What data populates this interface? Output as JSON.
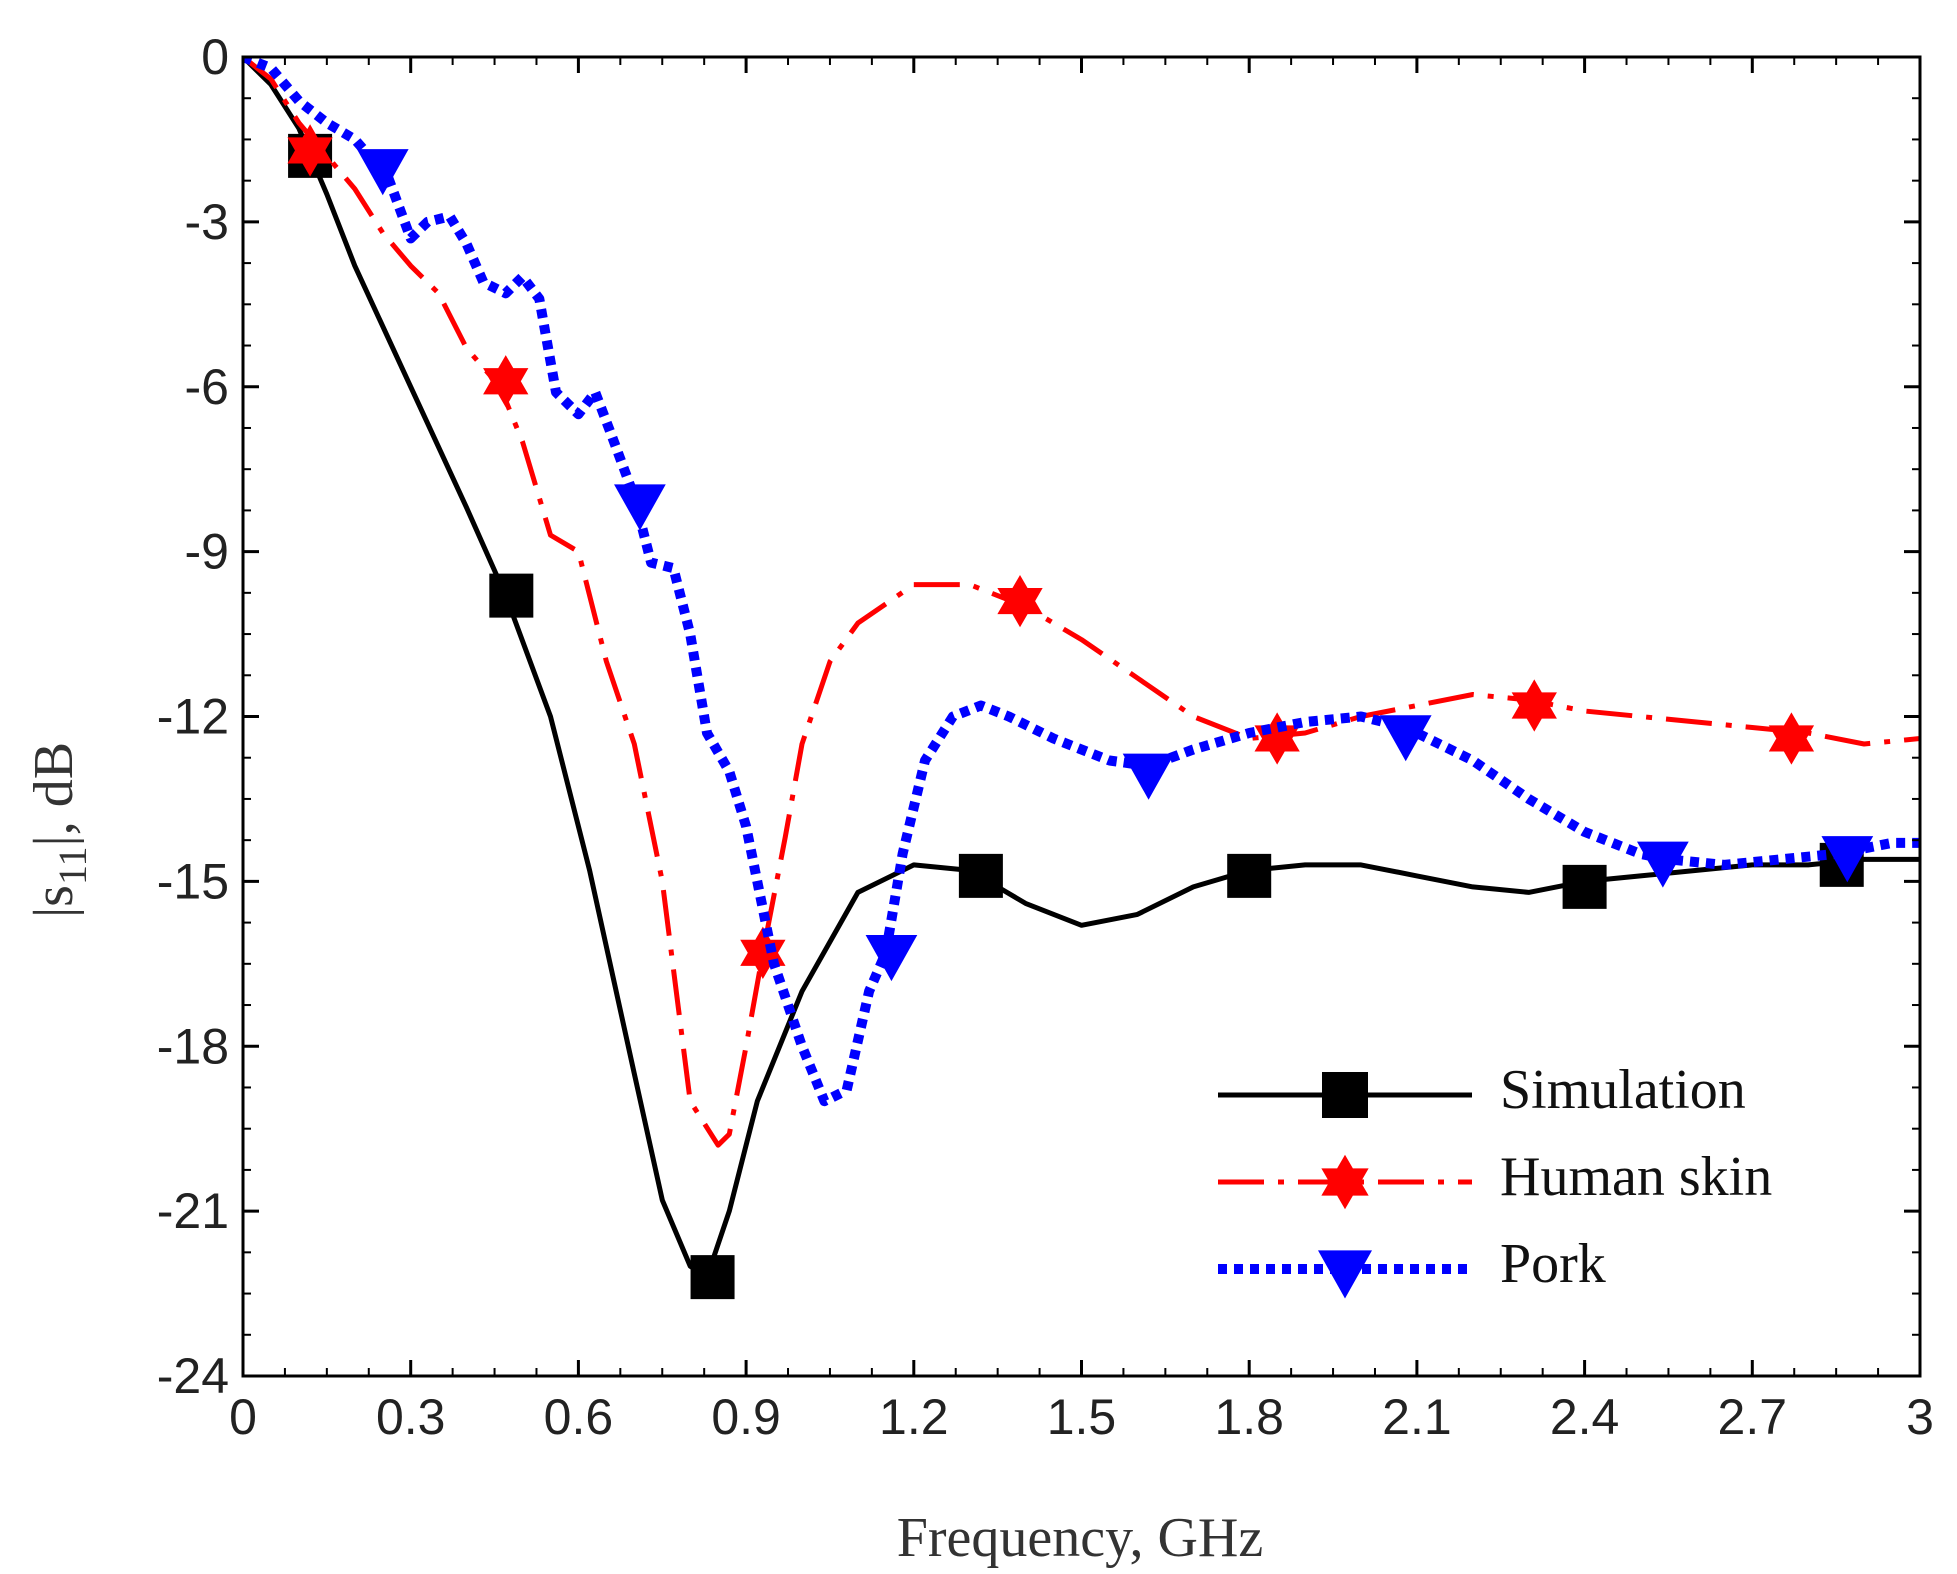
{
  "chart_data": {
    "type": "line",
    "title": "",
    "xlabel": "Frequency, GHz",
    "ylabel_main": "|s",
    "ylabel_sub": "11",
    "ylabel_tail": "|, dB",
    "xlim": [
      0,
      3
    ],
    "ylim": [
      -24,
      0
    ],
    "xticks": [
      0,
      0.3,
      0.6,
      0.9,
      1.2,
      1.5,
      1.8,
      2.1,
      2.4,
      2.7,
      3
    ],
    "xtick_labels": [
      "0",
      "0.3",
      "0.6",
      "0.9",
      "1.2",
      "1.5",
      "1.8",
      "2.1",
      "2.4",
      "2.7",
      "3"
    ],
    "yticks": [
      0,
      -3,
      -6,
      -9,
      -12,
      -15,
      -18,
      -21,
      -24
    ],
    "ytick_labels": [
      "0",
      "-3",
      "-6",
      "-9",
      "-12",
      "-15",
      "-18",
      "-21",
      "-24"
    ],
    "grid": false,
    "legend_position": "bottom-right",
    "series": [
      {
        "name": "Simulation",
        "color": "#000000",
        "line_style": "solid",
        "marker": "square",
        "x": [
          0,
          0.05,
          0.1,
          0.15,
          0.2,
          0.3,
          0.4,
          0.47,
          0.55,
          0.62,
          0.7,
          0.75,
          0.8,
          0.83,
          0.87,
          0.92,
          1.0,
          1.1,
          1.2,
          1.3,
          1.4,
          1.5,
          1.6,
          1.7,
          1.8,
          1.9,
          2.0,
          2.1,
          2.2,
          2.3,
          2.4,
          2.5,
          2.6,
          2.7,
          2.8,
          2.9,
          3.0
        ],
        "y": [
          0,
          -0.5,
          -1.3,
          -2.5,
          -3.8,
          -6.0,
          -8.2,
          -9.8,
          -12.0,
          -14.8,
          -18.5,
          -20.8,
          -22.0,
          -22.2,
          -21.0,
          -19.0,
          -17.0,
          -15.2,
          -14.7,
          -14.8,
          -15.4,
          -15.8,
          -15.6,
          -15.1,
          -14.8,
          -14.7,
          -14.7,
          -14.9,
          -15.1,
          -15.2,
          -15.0,
          -14.9,
          -14.8,
          -14.7,
          -14.7,
          -14.6,
          -14.6
        ],
        "marker_x": [
          0.12,
          0.48,
          0.84,
          1.32,
          1.8,
          2.4,
          2.86
        ],
        "marker_y": [
          -1.8,
          -9.8,
          -22.2,
          -14.9,
          -14.9,
          -15.1,
          -14.7
        ]
      },
      {
        "name": "Human skin",
        "color": "#ff0000",
        "line_style": "dashdot",
        "marker": "hexagram",
        "x": [
          0,
          0.05,
          0.1,
          0.2,
          0.25,
          0.3,
          0.35,
          0.4,
          0.46,
          0.5,
          0.55,
          0.6,
          0.65,
          0.7,
          0.75,
          0.8,
          0.85,
          0.87,
          0.9,
          0.93,
          0.97,
          1.0,
          1.05,
          1.1,
          1.2,
          1.3,
          1.4,
          1.5,
          1.6,
          1.7,
          1.8,
          1.9,
          2.0,
          2.1,
          2.2,
          2.3,
          2.4,
          2.5,
          2.6,
          2.7,
          2.8,
          2.9,
          3.0
        ],
        "y": [
          0,
          -0.4,
          -1.2,
          -2.4,
          -3.2,
          -3.8,
          -4.3,
          -5.3,
          -6.0,
          -7.0,
          -8.7,
          -9.0,
          -11.0,
          -12.5,
          -15.0,
          -19.0,
          -19.8,
          -19.6,
          -18.0,
          -16.3,
          -14.2,
          -12.5,
          -11.0,
          -10.3,
          -9.6,
          -9.6,
          -10.0,
          -10.6,
          -11.3,
          -12.0,
          -12.4,
          -12.3,
          -12.0,
          -11.8,
          -11.6,
          -11.7,
          -11.9,
          -12.0,
          -12.1,
          -12.2,
          -12.3,
          -12.5,
          -12.4
        ],
        "marker_x": [
          0.12,
          0.47,
          0.93,
          1.39,
          1.85,
          2.31,
          2.77
        ],
        "marker_y": [
          -1.7,
          -5.9,
          -16.3,
          -9.9,
          -12.4,
          -11.8,
          -12.4
        ]
      },
      {
        "name": "Pork",
        "color": "#0000ff",
        "line_style": "dotted",
        "marker": "triangle-down",
        "x": [
          0,
          0.05,
          0.1,
          0.15,
          0.2,
          0.26,
          0.3,
          0.33,
          0.37,
          0.4,
          0.43,
          0.47,
          0.5,
          0.53,
          0.56,
          0.6,
          0.63,
          0.66,
          0.7,
          0.73,
          0.77,
          0.8,
          0.83,
          0.87,
          0.9,
          0.95,
          1.0,
          1.04,
          1.08,
          1.12,
          1.15,
          1.18,
          1.22,
          1.27,
          1.32,
          1.37,
          1.45,
          1.55,
          1.62,
          1.7,
          1.8,
          1.9,
          2.0,
          2.08,
          2.2,
          2.3,
          2.4,
          2.5,
          2.55,
          2.65,
          2.75,
          2.85,
          2.95,
          3.0
        ],
        "y": [
          0,
          -0.2,
          -0.8,
          -1.2,
          -1.5,
          -2.2,
          -3.3,
          -3.0,
          -2.9,
          -3.4,
          -4.1,
          -4.3,
          -4.0,
          -4.4,
          -6.1,
          -6.5,
          -6.1,
          -6.9,
          -8.0,
          -9.2,
          -9.3,
          -10.5,
          -12.3,
          -13.0,
          -14.0,
          -16.5,
          -18.0,
          -19.0,
          -18.8,
          -17.0,
          -16.3,
          -14.5,
          -12.8,
          -12.0,
          -11.8,
          -12.0,
          -12.4,
          -12.8,
          -12.9,
          -12.6,
          -12.3,
          -12.1,
          -12.0,
          -12.2,
          -12.8,
          -13.5,
          -14.1,
          -14.5,
          -14.6,
          -14.7,
          -14.6,
          -14.5,
          -14.3,
          -14.3
        ],
        "marker_x": [
          0.25,
          0.71,
          1.16,
          1.62,
          2.08,
          2.54,
          2.87
        ],
        "marker_y": [
          -2.0,
          -8.1,
          -16.3,
          -13.0,
          -12.3,
          -14.6,
          -14.5
        ]
      }
    ]
  }
}
